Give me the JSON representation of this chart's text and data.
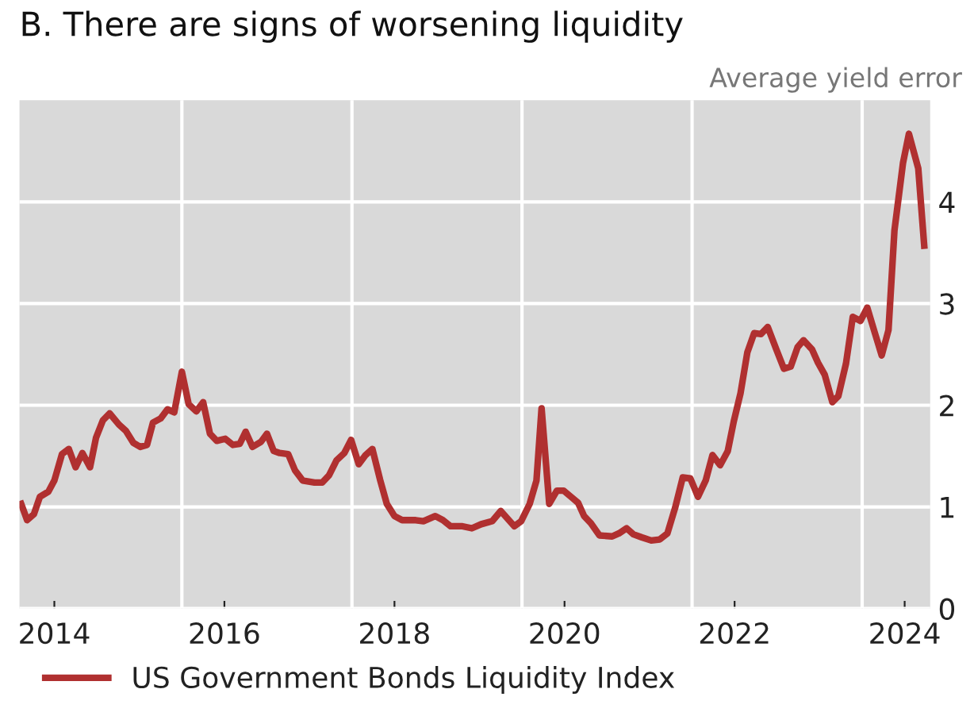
{
  "chart_data": {
    "type": "line",
    "title": "B. There are signs of worsening liquidity",
    "ylabel": "Average yield error",
    "x": [
      2014.11,
      2014.18,
      2014.26,
      2014.33,
      2014.43,
      2014.5,
      2014.59,
      2014.67,
      2014.75,
      2014.83,
      2014.92,
      2014.99,
      2015.07,
      2015.15,
      2015.26,
      2015.34,
      2015.43,
      2015.51,
      2015.59,
      2015.66,
      2015.75,
      2015.83,
      2015.91,
      2016.0,
      2016.08,
      2016.17,
      2016.25,
      2016.33,
      2016.41,
      2016.51,
      2016.6,
      2016.68,
      2016.75,
      2016.83,
      2016.93,
      2017.0,
      2017.08,
      2017.15,
      2017.25,
      2017.33,
      2017.42,
      2017.56,
      2017.65,
      2017.73,
      2017.82,
      2017.91,
      2017.99,
      2018.08,
      2018.16,
      2018.24,
      2018.33,
      2018.41,
      2018.5,
      2018.59,
      2018.75,
      2018.84,
      2018.98,
      2019.07,
      2019.16,
      2019.3,
      2019.41,
      2019.52,
      2019.65,
      2019.75,
      2019.91,
      2019.99,
      2020.09,
      2020.17,
      2020.23,
      2020.32,
      2020.41,
      2020.49,
      2020.59,
      2020.66,
      2020.73,
      2020.81,
      2020.91,
      2021.06,
      2021.14,
      2021.23,
      2021.31,
      2021.41,
      2021.52,
      2021.62,
      2021.71,
      2021.8,
      2021.89,
      2021.98,
      2022.07,
      2022.16,
      2022.24,
      2022.33,
      2022.42,
      2022.49,
      2022.57,
      2022.65,
      2022.73,
      2022.81,
      2022.89,
      2022.99,
      2023.08,
      2023.16,
      2023.24,
      2023.31,
      2023.41,
      2023.48,
      2023.56,
      2023.65,
      2023.72,
      2023.81,
      2023.89,
      2023.98,
      2024.06,
      2024.15,
      2024.23,
      2024.31,
      2024.38,
      2024.48,
      2024.55,
      2024.66,
      2024.73
    ],
    "series": [
      {
        "name": "US Government Bonds Liquidity Index",
        "color": "#b03030",
        "values": [
          1.03,
          0.87,
          0.93,
          1.1,
          1.15,
          1.26,
          1.52,
          1.57,
          1.39,
          1.53,
          1.39,
          1.68,
          1.85,
          1.92,
          1.81,
          1.75,
          1.63,
          1.59,
          1.61,
          1.83,
          1.87,
          1.96,
          1.93,
          2.33,
          2.01,
          1.94,
          2.03,
          1.72,
          1.65,
          1.67,
          1.61,
          1.62,
          1.74,
          1.59,
          1.64,
          1.72,
          1.55,
          1.53,
          1.52,
          1.36,
          1.26,
          1.24,
          1.24,
          1.31,
          1.46,
          1.53,
          1.66,
          1.42,
          1.51,
          1.57,
          1.27,
          1.03,
          0.91,
          0.87,
          0.87,
          0.86,
          0.91,
          0.87,
          0.81,
          0.81,
          0.79,
          0.83,
          0.86,
          0.96,
          0.81,
          0.86,
          1.03,
          1.26,
          1.97,
          1.03,
          1.16,
          1.16,
          1.09,
          1.04,
          0.91,
          0.84,
          0.72,
          0.71,
          0.74,
          0.79,
          0.73,
          0.7,
          0.67,
          0.68,
          0.74,
          0.99,
          1.29,
          1.28,
          1.1,
          1.26,
          1.51,
          1.41,
          1.55,
          1.84,
          2.12,
          2.52,
          2.71,
          2.7,
          2.77,
          2.55,
          2.36,
          2.38,
          2.57,
          2.64,
          2.55,
          2.42,
          2.3,
          2.03,
          2.09,
          2.41,
          2.87,
          2.83,
          2.96,
          2.71,
          2.49,
          2.74,
          3.72,
          4.38,
          4.67,
          4.33,
          3.57
        ]
      }
    ],
    "xlim": [
      2014.09,
      2024.8
    ],
    "xticks": [
      {
        "value": 2014.5,
        "label": "2014"
      },
      {
        "value": 2016,
        "label": null
      },
      {
        "value": 2016.5,
        "label": "2016"
      },
      {
        "value": 2018,
        "label": null
      },
      {
        "value": 2018.5,
        "label": "2018"
      },
      {
        "value": 2020,
        "label": null
      },
      {
        "value": 2020.5,
        "label": "2020"
      },
      {
        "value": 2022,
        "label": null
      },
      {
        "value": 2022.5,
        "label": "2022"
      },
      {
        "value": 2024,
        "label": null
      },
      {
        "value": 2024.5,
        "label": "2024"
      }
    ],
    "ylim": [
      0,
      5
    ],
    "yticks": [
      0,
      1,
      2,
      3,
      4
    ],
    "grid": true,
    "legend": "bottom",
    "line_style": "solid",
    "marker": "none"
  }
}
